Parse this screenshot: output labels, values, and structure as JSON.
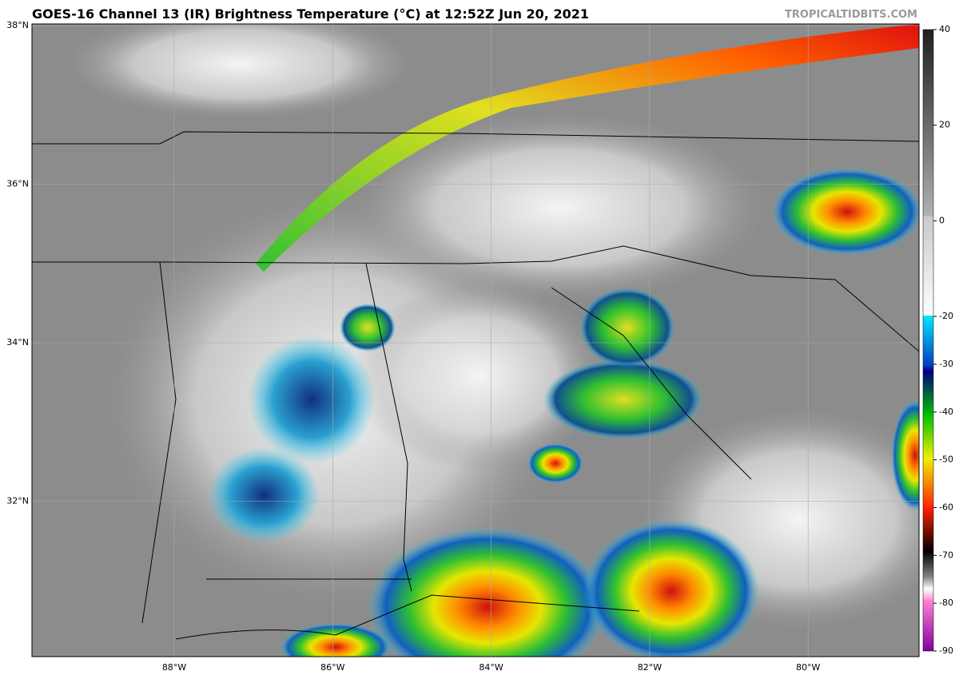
{
  "header": {
    "title": "GOES-16 Channel 13 (IR) Brightness Temperature (°C) at 12:52Z Jun 20, 2021",
    "credit": "TROPICALTIDBITS.COM"
  },
  "map": {
    "lat_labels": [
      "38°N",
      "36°N",
      "34°N",
      "32°N"
    ],
    "lon_labels": [
      "88°W",
      "86°W",
      "84°W",
      "82°W",
      "80°W"
    ]
  },
  "colorbar": {
    "ticks": [
      40,
      20,
      0,
      -20,
      -30,
      -40,
      -50,
      -60,
      -70,
      -80,
      -90
    ]
  }
}
